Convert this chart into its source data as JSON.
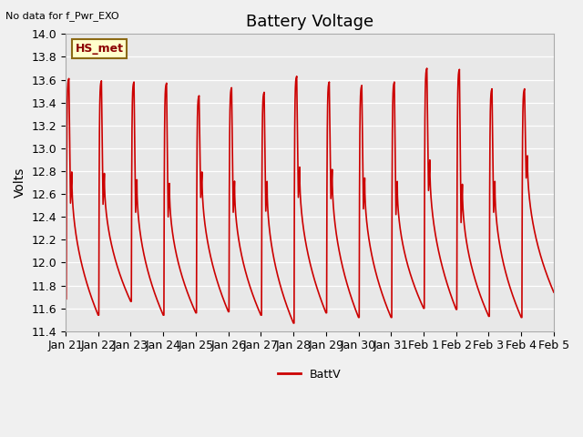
{
  "title": "Battery Voltage",
  "topleft_text": "No data for f_Pwr_EXO",
  "ylabel": "Volts",
  "ylim": [
    11.4,
    14.0
  ],
  "yticks": [
    11.4,
    11.6,
    11.8,
    12.0,
    12.2,
    12.4,
    12.6,
    12.8,
    13.0,
    13.2,
    13.4,
    13.6,
    13.8,
    14.0
  ],
  "xtick_labels": [
    "Jan 21",
    "Jan 22",
    "Jan 23",
    "Jan 24",
    "Jan 25",
    "Jan 26",
    "Jan 27",
    "Jan 28",
    "Jan 29",
    "Jan 30",
    "Jan 31",
    "Feb 1",
    "Feb 2",
    "Feb 3",
    "Feb 4",
    "Feb 5"
  ],
  "line_color": "#cc0000",
  "line_width": 1.2,
  "legend_label": "BattV",
  "hs_met_label": "HS_met",
  "plot_bg_color": "#e8e8e8",
  "grid_color": "#ffffff",
  "title_fontsize": 13,
  "label_fontsize": 10,
  "tick_fontsize": 9,
  "cycles": [
    {
      "sl": 11.68,
      "pk": 13.61,
      "md": 12.52,
      "el": 11.54
    },
    {
      "sl": 11.54,
      "pk": 13.59,
      "md": 12.51,
      "el": 11.66
    },
    {
      "sl": 11.66,
      "pk": 13.58,
      "md": 12.44,
      "el": 11.54
    },
    {
      "sl": 11.54,
      "pk": 13.57,
      "md": 12.4,
      "el": 11.56
    },
    {
      "sl": 11.56,
      "pk": 13.46,
      "md": 12.57,
      "el": 11.57
    },
    {
      "sl": 11.57,
      "pk": 13.53,
      "md": 12.44,
      "el": 11.54
    },
    {
      "sl": 11.54,
      "pk": 13.49,
      "md": 12.45,
      "el": 11.47
    },
    {
      "sl": 11.47,
      "pk": 13.63,
      "md": 12.57,
      "el": 11.56
    },
    {
      "sl": 11.56,
      "pk": 13.58,
      "md": 12.56,
      "el": 11.52
    },
    {
      "sl": 11.52,
      "pk": 13.55,
      "md": 12.47,
      "el": 11.52
    },
    {
      "sl": 11.52,
      "pk": 13.58,
      "md": 12.42,
      "el": 11.6
    },
    {
      "sl": 11.6,
      "pk": 13.7,
      "md": 12.63,
      "el": 11.59
    },
    {
      "sl": 11.59,
      "pk": 13.69,
      "md": 12.35,
      "el": 11.53
    },
    {
      "sl": 11.53,
      "pk": 13.52,
      "md": 12.44,
      "el": 11.52
    },
    {
      "sl": 11.52,
      "pk": 13.52,
      "md": 12.74,
      "el": 11.74
    }
  ]
}
